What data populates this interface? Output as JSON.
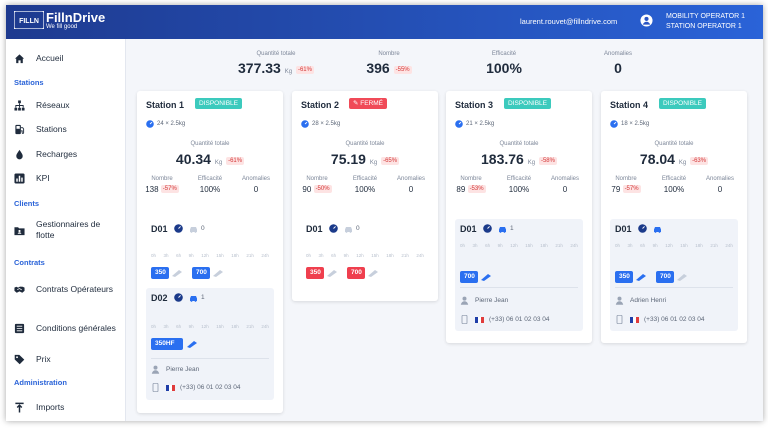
{
  "app": {
    "logo_mark": "FILLN",
    "name": "FillnDrive",
    "tagline": "We fill good"
  },
  "user": {
    "email": "laurent.rouvet@fillndrive.com",
    "roles": [
      "MOBILITY OPERATOR 1",
      "STATION OPERATOR 1"
    ]
  },
  "sidebar": {
    "home": "Accueil",
    "stations_section": "Stations",
    "items_stations": [
      "Réseaux",
      "Stations",
      "Recharges",
      "KPI"
    ],
    "clients_section": "Clients",
    "fleet_managers": "Gestionnaires de flotte",
    "contracts_section": "Contrats",
    "operator_contracts": "Contrats Opérateurs",
    "general_terms": "Conditions générales",
    "price": "Prix",
    "admin_section": "Administration",
    "imports": "Imports"
  },
  "summary": {
    "total_qty_label": "Quantité totale",
    "total_qty": "377.33",
    "total_qty_unit": "Kg",
    "total_qty_delta": "-61%",
    "count_label": "Nombre",
    "count": "396",
    "count_delta": "-55%",
    "efficiency_label": "Efficacité",
    "efficiency": "100%",
    "anomalies_label": "Anomalies",
    "anomalies": "0"
  },
  "labels": {
    "qty_total": "Quantité totale",
    "unit": "Kg",
    "count": "Nombre",
    "efficiency": "Efficacité",
    "anomalies": "Anomalies"
  },
  "axis_ticks": [
    "0h",
    "3h",
    "6h",
    "9h",
    "12h",
    "15h",
    "18h",
    "21h",
    "24h"
  ],
  "stations": [
    {
      "name": "Station 1",
      "status": "DISPONIBLE",
      "connector": "24 × 2.5kg",
      "qty": "40.34",
      "qty_delta": "-61%",
      "count": "138",
      "count_delta": "-57%",
      "efficiency": "100%",
      "anomalies": "0"
    },
    {
      "name": "Station 2",
      "status": "FERMÉ",
      "connector": "28 × 2.5kg",
      "qty": "75.19",
      "qty_delta": "-65%",
      "count": "90",
      "count_delta": "-50%",
      "efficiency": "100%",
      "anomalies": "0"
    },
    {
      "name": "Station 3",
      "status": "DISPONIBLE",
      "connector": "21 × 2.5kg",
      "qty": "183.76",
      "qty_delta": "-58%",
      "count": "89",
      "count_delta": "-53%",
      "efficiency": "100%",
      "anomalies": "0"
    },
    {
      "name": "Station 4",
      "status": "DISPONIBLE",
      "connector": "18 × 2.5kg",
      "qty": "78.04",
      "qty_delta": "-63%",
      "count": "79",
      "count_delta": "-57%",
      "efficiency": "100%",
      "anomalies": "0"
    }
  ],
  "dispensers": {
    "s1_d01": {
      "name": "D01",
      "vehicles": "0",
      "bars": [
        "350",
        "700"
      ]
    },
    "s1_d02": {
      "name": "D02",
      "vehicles": "1",
      "bars": [
        "350HF"
      ],
      "driver": "Pierre Jean",
      "phone": "(+33) 06 01 02 03 04"
    },
    "s2_d01": {
      "name": "D01",
      "vehicles": "0",
      "bars": [
        "350",
        "700"
      ]
    },
    "s3_d01": {
      "name": "D01",
      "vehicles": "1",
      "bars": [
        "700"
      ],
      "driver": "Pierre Jean",
      "phone": "(+33) 06 01 02 03 04"
    },
    "s4_d01": {
      "name": "D01",
      "vehicles": "",
      "bars": [
        "350",
        "700"
      ],
      "driver": "Adrien Henri",
      "phone": "(+33) 06 01 02 03 04"
    }
  },
  "colors": {
    "brand": "#2a63d8",
    "topbar_dark": "#1e3a8f",
    "available": "#3ccabd",
    "closed": "#f04a58",
    "bar_blue": "#2a6ff0",
    "bar_red": "#ef3f4e",
    "delta_red": "#d43838"
  }
}
